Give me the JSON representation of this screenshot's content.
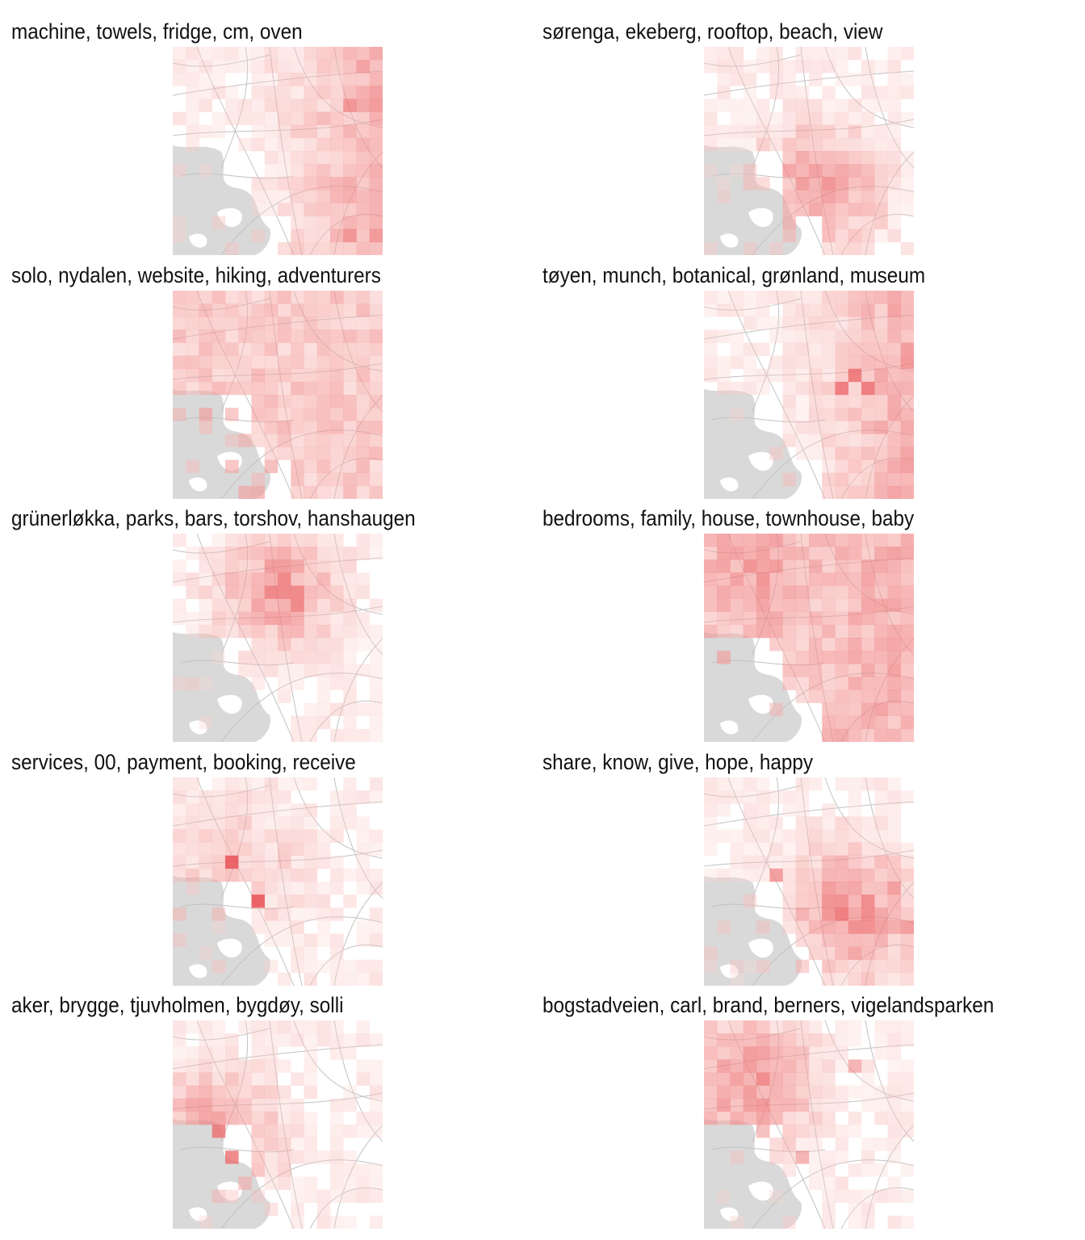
{
  "figure": {
    "panels": [
      {
        "title": "machine, towels, fridge, cm, oven"
      },
      {
        "title": "sørenga, ekeberg, rooftop, beach, view"
      },
      {
        "title": "solo, nydalen, website, hiking, adventurers"
      },
      {
        "title": "tøyen, munch, botanical, grønland, museum"
      },
      {
        "title": "grünerløkka, parks, bars, torshov, hanshaugen"
      },
      {
        "title": "bedrooms, family, house, townhouse, baby"
      },
      {
        "title": "services, 00, payment, booking, receive"
      },
      {
        "title": "share, know, give, hope, happy"
      },
      {
        "title": "aker, brygge, tjuvholmen, bygdøy, solli"
      },
      {
        "title": "bogstadveien, carl, brand, berners, vigelandsparken"
      }
    ],
    "colors": {
      "heat_low": "#fde6e0",
      "heat_high": "#e8484c",
      "water": "#d9d9d9",
      "road": "#c2c2c2",
      "background": "#ffffff"
    }
  },
  "chart_data": [
    {
      "type": "heatmap",
      "title": "machine, towels, fridge, cm, oven",
      "grid": "16x16 cells over a street map",
      "peak_region": "east",
      "hotspots": [
        [
          13,
          4
        ],
        [
          13,
          14
        ]
      ],
      "max_intensity": 0.7
    },
    {
      "type": "heatmap",
      "title": "sørenga, ekeberg, rooftop, beach, view",
      "grid": "16x16 cells over a street map",
      "peak_region": "south-center",
      "hotspots": [
        [
          8,
          10
        ],
        [
          8,
          11
        ],
        [
          9,
          9
        ]
      ],
      "max_intensity": 0.55
    },
    {
      "type": "heatmap",
      "title": "solo, nydalen, website, hiking, adventurers",
      "grid": "16x16 cells over a street map",
      "peak_region": "diffuse",
      "hotspots": [
        [
          5,
          1
        ],
        [
          0,
          2
        ]
      ],
      "max_intensity": 0.35
    },
    {
      "type": "heatmap",
      "title": "tøyen, munch, botanical, grønland, museum",
      "grid": "16x16 cells over a street map",
      "peak_region": "east",
      "hotspots": [
        [
          11,
          6
        ],
        [
          12,
          7
        ],
        [
          10,
          7
        ],
        [
          4,
          8
        ]
      ],
      "max_intensity": 0.8
    },
    {
      "type": "heatmap",
      "title": "grünerløkka, parks, bars, torshov, hanshaugen",
      "grid": "16x16 cells over a street map",
      "peak_region": "north-center",
      "hotspots": [
        [
          8,
          3
        ],
        [
          8,
          4
        ],
        [
          9,
          4
        ],
        [
          9,
          5
        ]
      ],
      "max_intensity": 0.75
    },
    {
      "type": "heatmap",
      "title": "bedrooms, family, house, townhouse, baby",
      "grid": "16x16 cells over a street map",
      "peak_region": "north-west, east",
      "hotspots": [
        [
          15,
          1
        ],
        [
          4,
          0
        ],
        [
          10,
          15
        ]
      ],
      "max_intensity": 0.6
    },
    {
      "type": "heatmap",
      "title": "services, 00, payment, booking, receive",
      "grid": "16x16 cells over a street map",
      "peak_region": "west-center",
      "hotspots": [
        [
          4,
          6
        ],
        [
          6,
          9
        ]
      ],
      "max_intensity": 0.9
    },
    {
      "type": "heatmap",
      "title": "share, know, give, hope, happy",
      "grid": "16x16 cells over a street map",
      "peak_region": "south-east",
      "hotspots": [
        [
          15,
          11
        ],
        [
          5,
          7
        ],
        [
          14,
          8
        ]
      ],
      "max_intensity": 0.65
    },
    {
      "type": "heatmap",
      "title": "aker, brygge, tjuvholmen, bygdøy, solli",
      "grid": "16x16 cells over a street map",
      "peak_region": "south-west",
      "hotspots": [
        [
          3,
          8
        ],
        [
          4,
          10
        ],
        [
          0,
          8
        ]
      ],
      "max_intensity": 0.75
    },
    {
      "type": "heatmap",
      "title": "bogstadveien, carl, brand, berners, vigelandsparken",
      "grid": "16x16 cells over a street map",
      "peak_region": "north-west",
      "hotspots": [
        [
          3,
          4
        ],
        [
          2,
          3
        ],
        [
          7,
          10
        ],
        [
          11,
          3
        ]
      ],
      "max_intensity": 0.55
    }
  ]
}
